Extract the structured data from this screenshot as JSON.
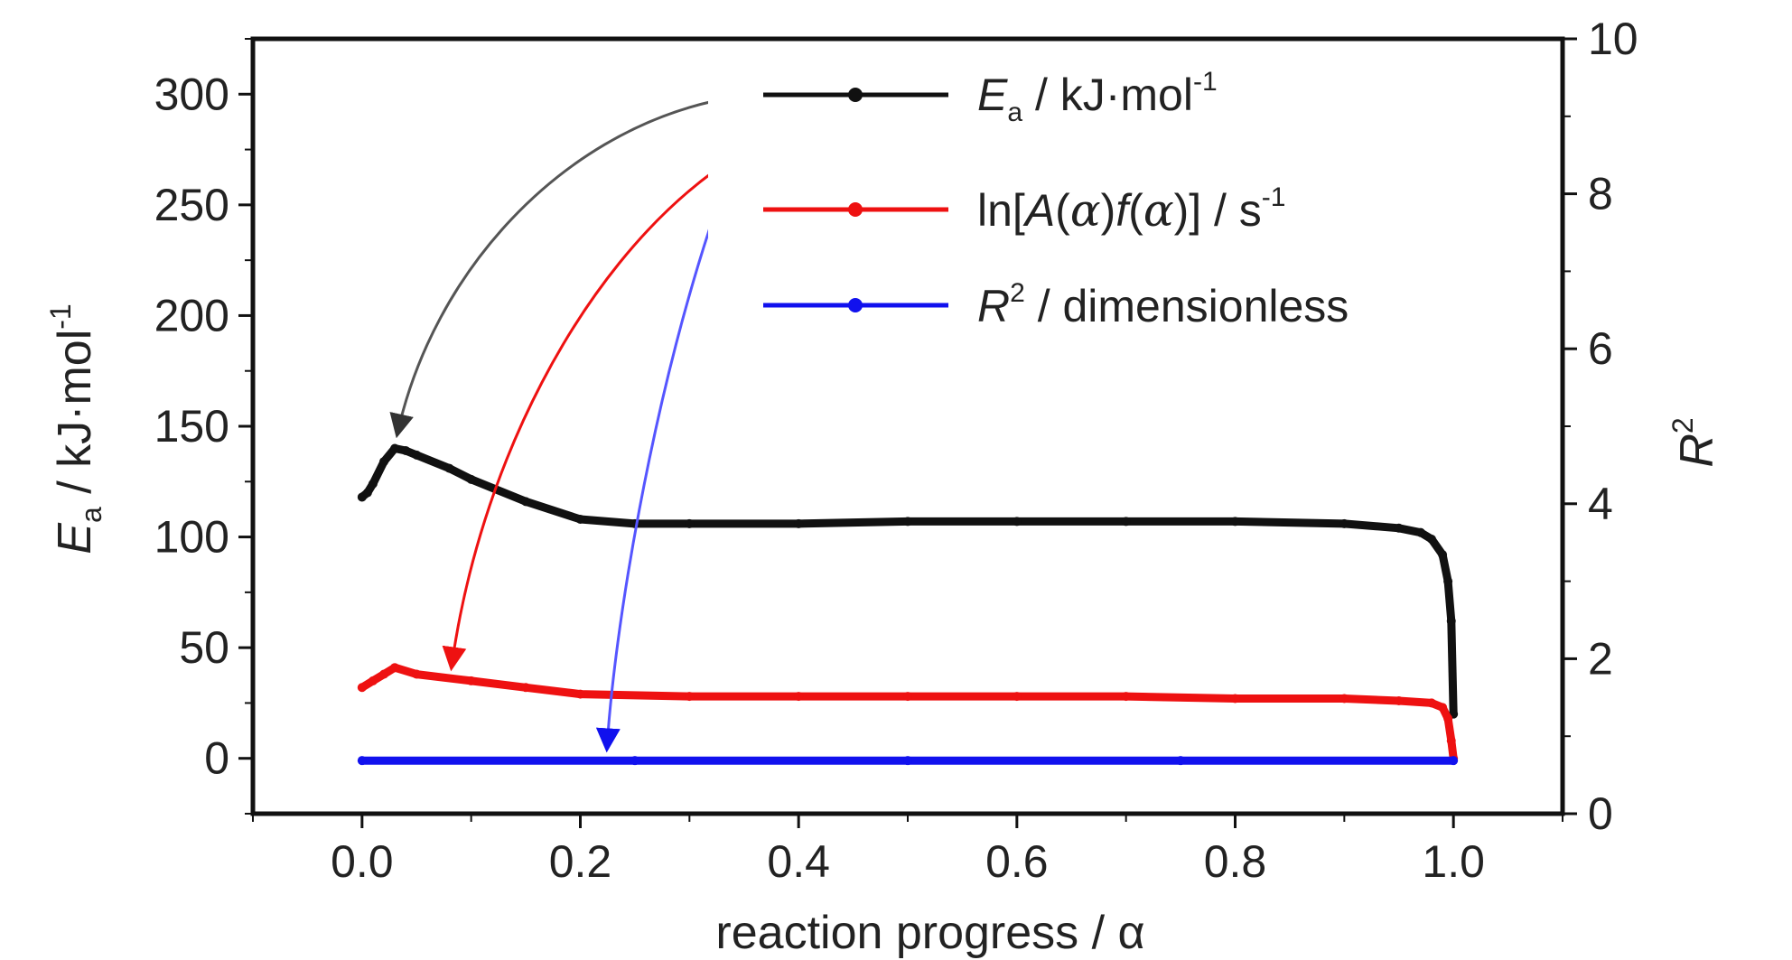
{
  "chart_data": {
    "type": "line",
    "xlabel": "reaction progress / α",
    "ylabel_left": {
      "main": "E",
      "sub": "a",
      "rest": " / kJ·mol",
      "sup": "-1"
    },
    "ylabel_right": {
      "main": "R",
      "sup": "2"
    },
    "x_ticks": [
      "0.0",
      "0.2",
      "0.4",
      "0.6",
      "0.8",
      "1.0"
    ],
    "y_left_ticks": [
      "0",
      "50",
      "100",
      "150",
      "200",
      "250",
      "300"
    ],
    "y_right_ticks": [
      "0",
      "2",
      "4",
      "6",
      "8",
      "10"
    ],
    "xlim": [
      -0.1,
      1.1
    ],
    "ylim_left": [
      -25,
      325
    ],
    "ylim_right": [
      0,
      10
    ],
    "legend_position": "top-right",
    "series": [
      {
        "name": "E_a / kJ·mol-1",
        "legend": {
          "main": "E",
          "sub": "a",
          "rest": " / kJ·mol",
          "sup": "-1"
        },
        "color": "#111111",
        "axis": "left",
        "x": [
          0.0,
          0.005,
          0.01,
          0.02,
          0.03,
          0.04,
          0.05,
          0.08,
          0.1,
          0.15,
          0.2,
          0.25,
          0.3,
          0.4,
          0.5,
          0.6,
          0.7,
          0.8,
          0.9,
          0.95,
          0.97,
          0.98,
          0.99,
          0.995,
          0.998,
          1.0
        ],
        "y": [
          118,
          120,
          124,
          134,
          140,
          139,
          137,
          131,
          126,
          116,
          108,
          106,
          106,
          106,
          107,
          107,
          107,
          107,
          106,
          104,
          102,
          99,
          92,
          80,
          62,
          20
        ]
      },
      {
        "name": "ln[A(α)f(α)] / s-1",
        "legend": {
          "prefix": "ln[",
          "a1": "A",
          "p1": "(",
          "alpha1": "α",
          "p2": ")",
          "f": "f",
          "p3": "(",
          "alpha2": "α",
          "p4": ")] / s",
          "sup": "-1"
        },
        "color": "#ee1111",
        "axis": "left",
        "x": [
          0.0,
          0.01,
          0.02,
          0.03,
          0.05,
          0.1,
          0.15,
          0.2,
          0.3,
          0.4,
          0.5,
          0.6,
          0.7,
          0.8,
          0.9,
          0.95,
          0.98,
          0.99,
          0.995,
          0.998,
          1.0
        ],
        "y": [
          32,
          35,
          38,
          41,
          38,
          35,
          32,
          29,
          28,
          28,
          28,
          28,
          28,
          27,
          27,
          26,
          25,
          23,
          18,
          8,
          0
        ]
      },
      {
        "name": "R2 / dimensionless",
        "legend": {
          "main": "R",
          "sup": "2",
          "rest": " / dimensionless"
        },
        "color": "#1111ee",
        "axis": "left",
        "x": [
          0.0,
          0.25,
          0.5,
          0.75,
          1.0
        ],
        "y": [
          -1,
          -1,
          -1,
          -1,
          -1
        ]
      }
    ]
  }
}
